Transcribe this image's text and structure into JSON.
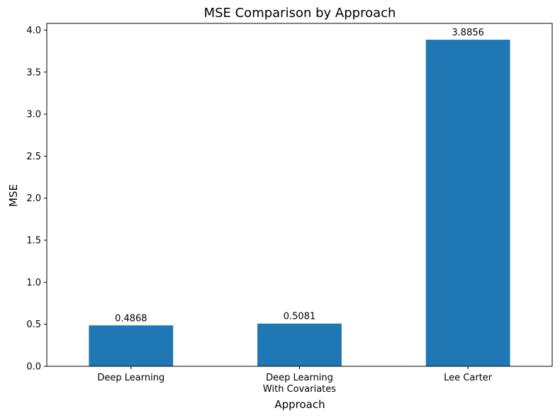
{
  "chart_data": {
    "type": "bar",
    "title": "MSE Comparison by Approach",
    "xlabel": "Approach",
    "ylabel": "MSE",
    "categories": [
      [
        "Deep Learning"
      ],
      [
        "Deep Learning",
        "With Covariates"
      ],
      [
        "Lee Carter"
      ]
    ],
    "values": [
      0.4868,
      0.5081,
      3.8856
    ],
    "data_labels": [
      "0.4868",
      "0.5081",
      "3.8856"
    ],
    "ylim": [
      0,
      4.08
    ],
    "yticks": [
      0.0,
      0.5,
      1.0,
      1.5,
      2.0,
      2.5,
      3.0,
      3.5,
      4.0
    ],
    "ytick_labels": [
      "0.0",
      "0.5",
      "1.0",
      "1.5",
      "2.0",
      "2.5",
      "3.0",
      "3.5",
      "4.0"
    ],
    "bar_color": "#1f77b4",
    "grid": false,
    "legend": "none"
  }
}
